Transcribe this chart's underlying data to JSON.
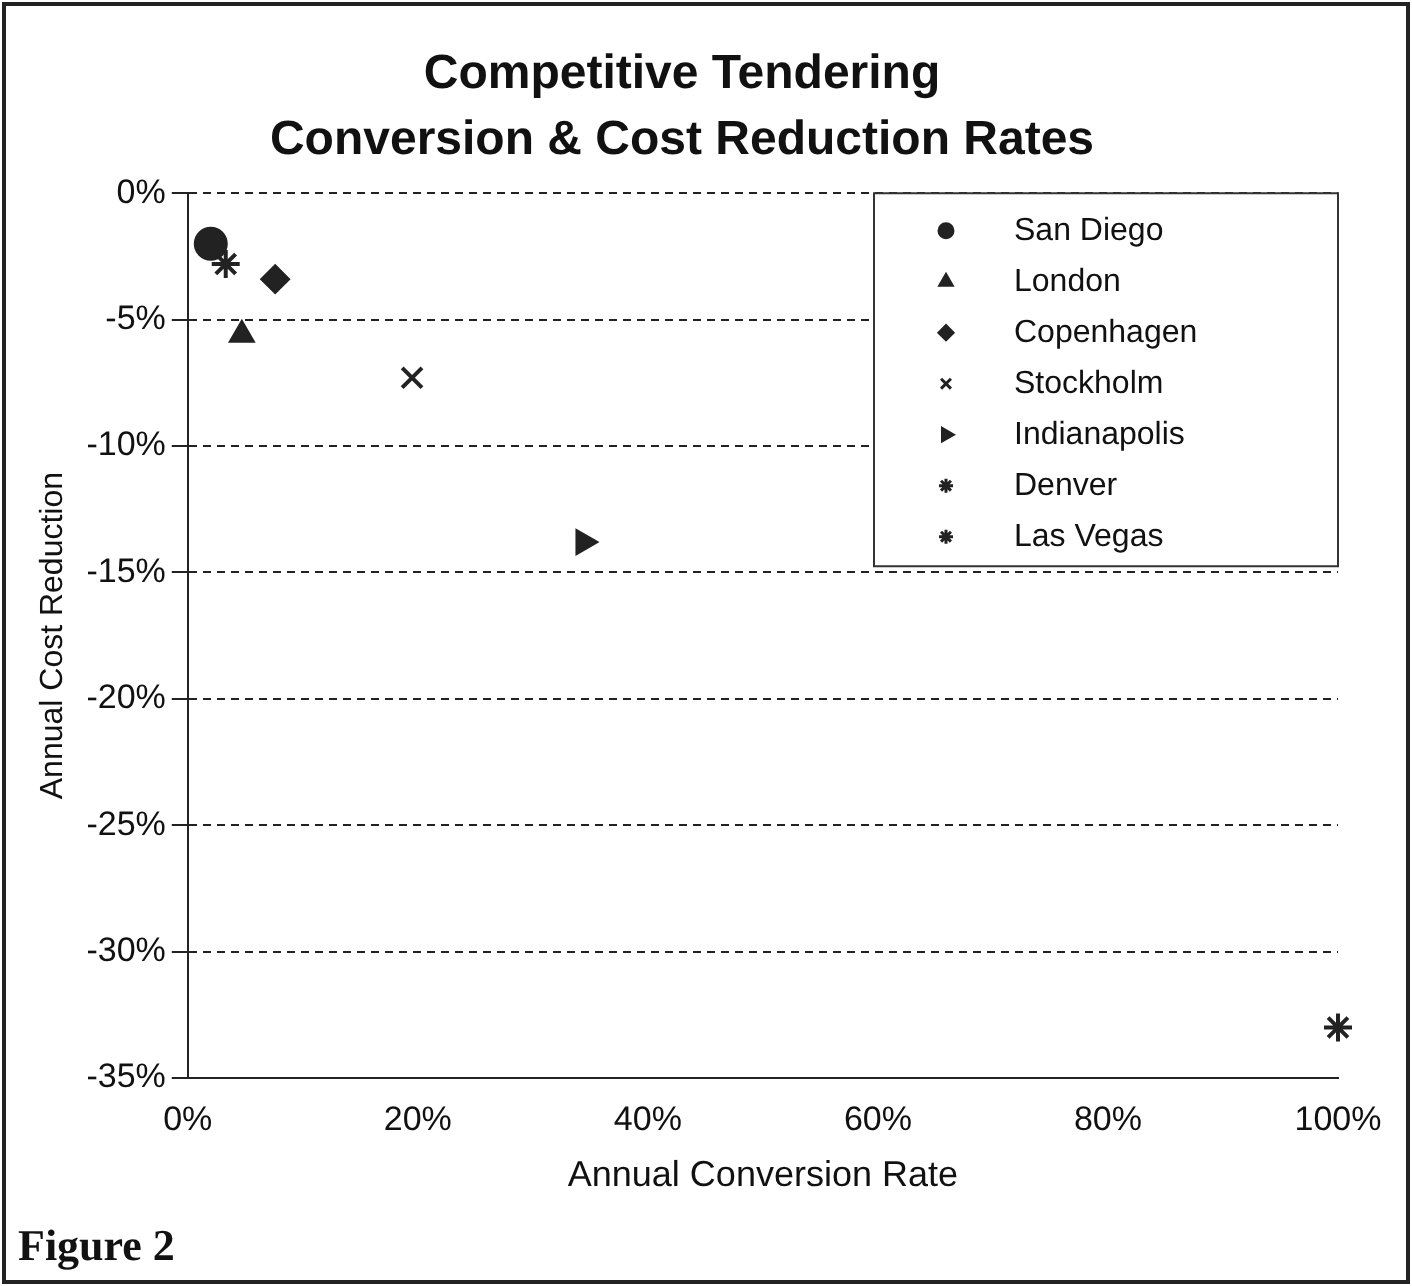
{
  "chart_data": {
    "type": "scatter",
    "title": "Competitive Tendering",
    "subtitle": "Conversion & Cost Reduction Rates",
    "xlabel": "Annual Conversion Rate",
    "ylabel": "Annual Cost Reduction",
    "xlim": [
      0,
      100
    ],
    "xticks": [
      {
        "value": 0,
        "label": "0%"
      },
      {
        "value": 20,
        "label": "20%"
      },
      {
        "value": 40,
        "label": "40%"
      },
      {
        "value": 60,
        "label": "60%"
      },
      {
        "value": 80,
        "label": "80%"
      },
      {
        "value": 100,
        "label": "100%"
      }
    ],
    "ylim": [
      -35,
      0
    ],
    "yticks": [
      {
        "value": 0,
        "label": "0%"
      },
      {
        "value": -5,
        "label": "-5%"
      },
      {
        "value": -10,
        "label": "-10%"
      },
      {
        "value": -15,
        "label": "-15%"
      },
      {
        "value": -20,
        "label": "-20%"
      },
      {
        "value": -25,
        "label": "-25%"
      },
      {
        "value": -30,
        "label": "-30%"
      },
      {
        "value": -35,
        "label": "-35%"
      }
    ],
    "grid": "y",
    "legend": "top right",
    "series": [
      {
        "name": "San Diego",
        "color": "#222222",
        "marker": "circle",
        "x": [
          2
        ],
        "values": [
          -2
        ]
      },
      {
        "name": "London",
        "color": "#222222",
        "marker": "triangle",
        "x": [
          4.7
        ],
        "values": [
          -5.6
        ]
      },
      {
        "name": "Copenhagen",
        "color": "#222222",
        "marker": "diamond",
        "x": [
          7.6
        ],
        "values": [
          -3.4
        ]
      },
      {
        "name": "Stockholm",
        "color": "#222222",
        "marker": "cross",
        "x": [
          19.5
        ],
        "values": [
          -7.3
        ]
      },
      {
        "name": "Indianapolis",
        "color": "#222222",
        "marker": "triangle",
        "x": [
          34.4
        ],
        "values": [
          -13.8
        ]
      },
      {
        "name": "Denver",
        "color": "#222222",
        "marker": "cross",
        "x": [
          3.3
        ],
        "values": [
          -2.8
        ]
      },
      {
        "name": "Las Vegas",
        "color": "#222222",
        "marker": "cross",
        "x": [
          100
        ],
        "values": [
          -33
        ]
      }
    ],
    "annotations": [
      "Figure 2"
    ]
  }
}
